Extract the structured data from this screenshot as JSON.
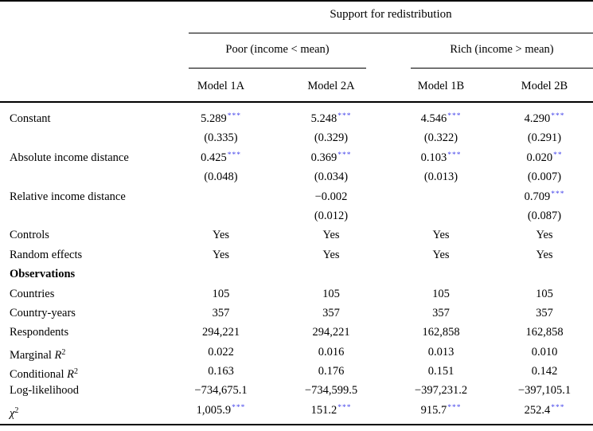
{
  "header": {
    "title": "Support for redistribution",
    "groups": [
      {
        "label": "Poor (income < mean)"
      },
      {
        "label": "Rich (income > mean)"
      }
    ],
    "models": [
      "Model 1A",
      "Model 2A",
      "Model 1B",
      "Model 2B"
    ]
  },
  "body": {
    "rows": [
      {
        "label": "Constant",
        "cells": [
          {
            "v": "5.289",
            "s": "***"
          },
          {
            "v": "5.248",
            "s": "***"
          },
          {
            "v": "4.546",
            "s": "***"
          },
          {
            "v": "4.290",
            "s": "***"
          }
        ]
      },
      {
        "label": "",
        "cells": [
          {
            "v": "(0.335)",
            "s": ""
          },
          {
            "v": "(0.329)",
            "s": ""
          },
          {
            "v": "(0.322)",
            "s": ""
          },
          {
            "v": "(0.291)",
            "s": ""
          }
        ]
      },
      {
        "label": "Absolute income distance",
        "cells": [
          {
            "v": "0.425",
            "s": "***"
          },
          {
            "v": "0.369",
            "s": "***"
          },
          {
            "v": "0.103",
            "s": "***"
          },
          {
            "v": "0.020",
            "s": "**"
          }
        ]
      },
      {
        "label": "",
        "cells": [
          {
            "v": "(0.048)",
            "s": ""
          },
          {
            "v": "(0.034)",
            "s": ""
          },
          {
            "v": "(0.013)",
            "s": ""
          },
          {
            "v": "(0.007)",
            "s": ""
          }
        ]
      },
      {
        "label": "Relative income distance",
        "cells": [
          {
            "v": "",
            "s": ""
          },
          {
            "v": "−0.002",
            "s": ""
          },
          {
            "v": "",
            "s": ""
          },
          {
            "v": "0.709",
            "s": "***"
          }
        ]
      },
      {
        "label": "",
        "cells": [
          {
            "v": "",
            "s": ""
          },
          {
            "v": "(0.012)",
            "s": ""
          },
          {
            "v": "",
            "s": ""
          },
          {
            "v": "(0.087)",
            "s": ""
          }
        ]
      },
      {
        "label": "Controls",
        "cells": [
          {
            "v": "Yes",
            "s": ""
          },
          {
            "v": "Yes",
            "s": ""
          },
          {
            "v": "Yes",
            "s": ""
          },
          {
            "v": "Yes",
            "s": ""
          }
        ]
      },
      {
        "label": "Random effects",
        "cells": [
          {
            "v": "Yes",
            "s": ""
          },
          {
            "v": "Yes",
            "s": ""
          },
          {
            "v": "Yes",
            "s": ""
          },
          {
            "v": "Yes",
            "s": ""
          }
        ]
      },
      {
        "label": "Observations",
        "cells": [
          {
            "v": "",
            "s": ""
          },
          {
            "v": "",
            "s": ""
          },
          {
            "v": "",
            "s": ""
          },
          {
            "v": "",
            "s": ""
          }
        ]
      },
      {
        "label": "Countries",
        "cells": [
          {
            "v": "105",
            "s": ""
          },
          {
            "v": "105",
            "s": ""
          },
          {
            "v": "105",
            "s": ""
          },
          {
            "v": "105",
            "s": ""
          }
        ]
      },
      {
        "label": "Country-years",
        "cells": [
          {
            "v": "357",
            "s": ""
          },
          {
            "v": "357",
            "s": ""
          },
          {
            "v": "357",
            "s": ""
          },
          {
            "v": "357",
            "s": ""
          }
        ]
      },
      {
        "label": "Respondents",
        "cells": [
          {
            "v": "294,221",
            "s": ""
          },
          {
            "v": "294,221",
            "s": ""
          },
          {
            "v": "162,858",
            "s": ""
          },
          {
            "v": "162,858",
            "s": ""
          }
        ]
      },
      {
        "label": "Marginal ",
        "label_var": "R",
        "label_sup": "2",
        "cells": [
          {
            "v": "0.022",
            "s": ""
          },
          {
            "v": "0.016",
            "s": ""
          },
          {
            "v": "0.013",
            "s": ""
          },
          {
            "v": "0.010",
            "s": ""
          }
        ]
      },
      {
        "label": "Conditional ",
        "label_var": "R",
        "label_sup": "2",
        "cells": [
          {
            "v": "0.163",
            "s": ""
          },
          {
            "v": "0.176",
            "s": ""
          },
          {
            "v": "0.151",
            "s": ""
          },
          {
            "v": "0.142",
            "s": ""
          }
        ]
      },
      {
        "label": "Log-likelihood",
        "cells": [
          {
            "v": "−734,675.1",
            "s": ""
          },
          {
            "v": "−734,599.5",
            "s": ""
          },
          {
            "v": "−397,231.2",
            "s": ""
          },
          {
            "v": "−397,105.1",
            "s": ""
          }
        ]
      },
      {
        "label": "",
        "label_var": "χ",
        "label_sup": "2",
        "cells": [
          {
            "v": "1,005.9",
            "s": "***"
          },
          {
            "v": "151.2",
            "s": "***"
          },
          {
            "v": "915.7",
            "s": "***"
          },
          {
            "v": "252.4",
            "s": "***"
          }
        ]
      }
    ]
  },
  "colors": {
    "star": "#4343ea",
    "rule": "#000000",
    "text": "#000000"
  }
}
